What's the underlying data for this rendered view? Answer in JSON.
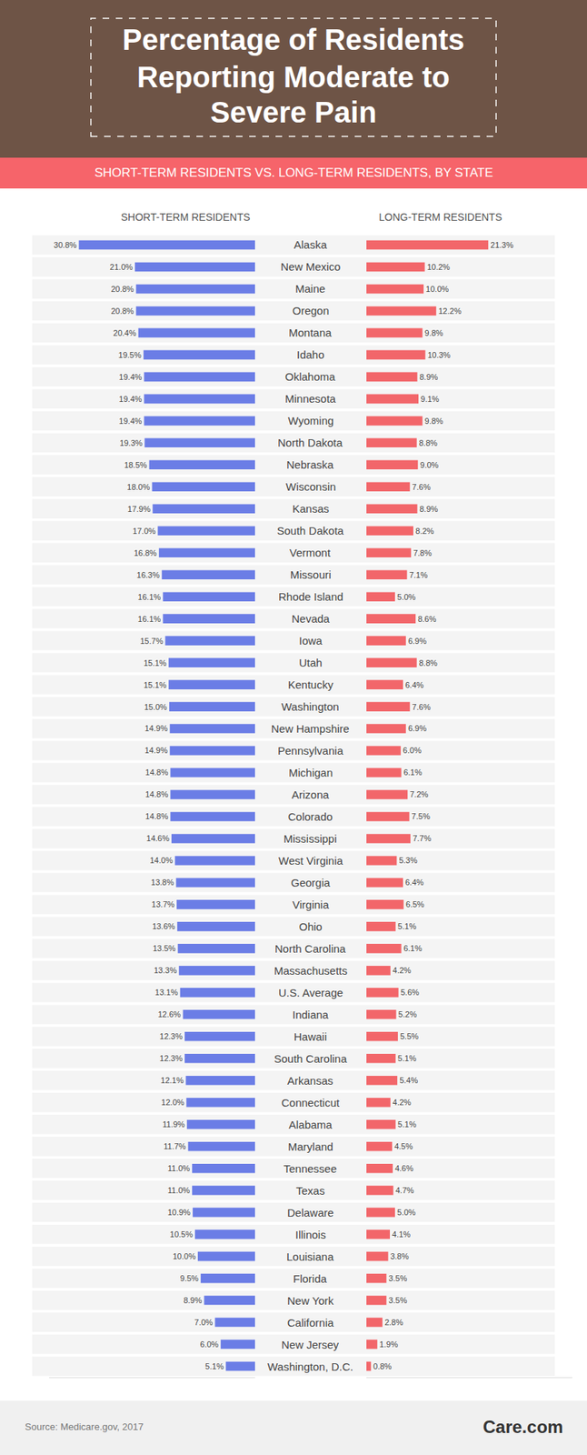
{
  "chart_data": {
    "type": "bar",
    "orientation": "horizontal",
    "title": "Percentage of Residents Reporting Moderate to Severe Pain",
    "subtitle": "SHORT-TERM RESIDENTS VS. LONG-TERM RESIDENTS, BY STATE",
    "source": "Source: Medicare.gov, 2017",
    "logo": "Care.com",
    "data_labels": true,
    "xlim": [
      0,
      36
    ],
    "xticks": [],
    "categories": [
      "Alaska",
      "New Mexico",
      "Maine",
      "Oregon",
      "Montana",
      "Idaho",
      "Oklahoma",
      "Minnesota",
      "Wyoming",
      "North Dakota",
      "Nebraska",
      "Wisconsin",
      "Kansas",
      "South Dakota",
      "Vermont",
      "Missouri",
      "Rhode Island",
      "Nevada",
      "Iowa",
      "Utah",
      "Kentucky",
      "Washington",
      "New Hampshire",
      "Pennsylvania",
      "Michigan",
      "Arizona",
      "Colorado",
      "Mississippi",
      "West Virginia",
      "Georgia",
      "Virginia",
      "Ohio",
      "North Carolina",
      "Massachusetts",
      "U.S. Average",
      "Indiana",
      "Hawaii",
      "South Carolina",
      "Arkansas",
      "Connecticut",
      "Alabama",
      "Maryland",
      "Tennessee",
      "Texas",
      "Delaware",
      "Illinois",
      "Louisiana",
      "Florida",
      "New York",
      "California",
      "New Jersey",
      "Washington, D.C."
    ],
    "series": [
      {
        "name": "SHORT-TERM RESIDENTS",
        "color": "#6b7de6",
        "values": [
          30.8,
          21.0,
          20.8,
          20.8,
          20.4,
          19.5,
          19.4,
          19.4,
          19.4,
          19.3,
          18.5,
          18.0,
          17.9,
          17.0,
          16.8,
          16.3,
          16.1,
          16.1,
          15.7,
          15.1,
          15.1,
          15.0,
          14.9,
          14.9,
          14.8,
          14.8,
          14.8,
          14.6,
          14.0,
          13.8,
          13.7,
          13.6,
          13.5,
          13.3,
          13.1,
          12.6,
          12.3,
          12.3,
          12.1,
          12.0,
          11.9,
          11.7,
          11.0,
          11.0,
          10.9,
          10.5,
          10.0,
          9.5,
          8.9,
          7.0,
          6.0,
          5.1
        ],
        "value_labels": [
          "30.8%",
          "21.0%",
          "20.8%",
          "20.8%",
          "20.4%",
          "19.5%",
          "19.4%",
          "19.4%",
          "19.4%",
          "19.3%",
          "18.5%",
          "18.0%",
          "17.9%",
          "17.0%",
          "16.8%",
          "16.3%",
          "16.1%",
          "16.1%",
          "15.7%",
          "15.1%",
          "15.1%",
          "15.0%",
          "14.9%",
          "14.9%",
          "14.8%",
          "14.8%",
          "14.8%",
          "14.6%",
          "14.0%",
          "13.8%",
          "13.7%",
          "13.6%",
          "13.5%",
          "13.3%",
          "13.1%",
          "12.6%",
          "12.3%",
          "12.3%",
          "12.1%",
          "12.0%",
          "11.9%",
          "11.7%",
          "11.0%",
          "11.0%",
          "10.9%",
          "10.5%",
          "10.0%",
          "9.5%",
          "8.9%",
          "7.0%",
          "6.0%",
          "5.1%"
        ]
      },
      {
        "name": "LONG-TERM RESIDENTS",
        "color": "#f2666a",
        "values": [
          21.3,
          10.2,
          10.0,
          12.2,
          9.8,
          10.3,
          8.9,
          9.1,
          9.8,
          8.8,
          9.0,
          7.6,
          8.9,
          8.2,
          7.8,
          7.1,
          5.0,
          8.6,
          6.9,
          8.8,
          6.4,
          7.6,
          6.9,
          6.0,
          6.1,
          7.2,
          7.5,
          7.7,
          5.3,
          6.4,
          6.5,
          5.1,
          6.1,
          4.2,
          5.6,
          5.2,
          5.5,
          5.1,
          5.4,
          4.2,
          5.1,
          4.5,
          4.6,
          4.7,
          5.0,
          4.1,
          3.8,
          3.5,
          3.5,
          2.8,
          1.9,
          0.8
        ],
        "value_labels": [
          "21.3%",
          "10.2%",
          "10.0%",
          "12.2%",
          "9.8%",
          "10.3%",
          "8.9%",
          "9.1%",
          "9.8%",
          "8.8%",
          "9.0%",
          "7.6%",
          "8.9%",
          "8.2%",
          "7.8%",
          "7.1%",
          "5.0%",
          "8.6%",
          "6.9%",
          "8.8%",
          "6.4%",
          "7.6%",
          "6.9%",
          "6.0%",
          "6.1%",
          "7.2%",
          "7.5%",
          "7.7%",
          "5.3%",
          "6.4%",
          "6.5%",
          "5.1%",
          "6.1%",
          "4.2%",
          "5.6%",
          "5.2%",
          "5.5%",
          "5.1%",
          "5.4%",
          "4.2%",
          "5.1%",
          "4.5%",
          "4.6%",
          "4.7%",
          "5.0%",
          "4.1%",
          "3.8%",
          "3.5%",
          "3.5%",
          "2.8%",
          "1.9%",
          "0.8%"
        ]
      }
    ]
  }
}
